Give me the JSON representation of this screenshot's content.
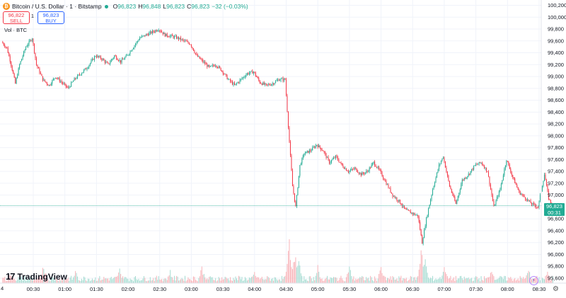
{
  "header": {
    "coin_symbol": "₿",
    "title": "Bitcoin / U.S. Dollar · 1 · Bitstamp",
    "ohlc": {
      "o_key": "O",
      "o_val": "96,823",
      "h_key": "H",
      "h_val": "96,848",
      "l_key": "L",
      "l_val": "96,823",
      "c_key": "C",
      "c_val": "96,823",
      "change": "−32 (−0.03%)"
    }
  },
  "trade": {
    "sell_price": "96,822",
    "sell_label": "SELL",
    "spread": "1",
    "buy_price": "96,823",
    "buy_label": "BUY"
  },
  "volume_label": "Vol · BTC",
  "logo_text": "TradingView",
  "left_stub": "4",
  "current_price": {
    "price": "96,823",
    "countdown": "00:31"
  },
  "colors": {
    "up": "#22ab94",
    "down": "#f23645",
    "up_vol": "#a6dcd2",
    "down_vol": "#f8b4b9",
    "grid": "#f0f3fa"
  },
  "chart_data": {
    "type": "candlestick",
    "y_ticks": [
      "100,200",
      "100,000",
      "99,800",
      "99,600",
      "99,400",
      "99,200",
      "99,000",
      "98,800",
      "98,600",
      "98,400",
      "98,200",
      "98,000",
      "97,800",
      "97,600",
      "97,400",
      "97,200",
      "97,000",
      "96,800",
      "96,600",
      "96,400",
      "96,200",
      "96,000",
      "95,800",
      "95,600"
    ],
    "y_range": [
      95600,
      100200
    ],
    "x_ticks": [
      "00:30",
      "01:00",
      "01:30",
      "02:00",
      "02:30",
      "03:00",
      "03:30",
      "04:00",
      "04:30",
      "05:00",
      "05:30",
      "06:00",
      "06:30",
      "07:00",
      "07:30",
      "08:00",
      "08:30"
    ],
    "time_start": "00:01",
    "time_end": "08:43",
    "last_price": 96823,
    "price_path": [
      [
        "00:01",
        99580
      ],
      [
        "00:06",
        99480
      ],
      [
        "00:10",
        99200
      ],
      [
        "00:14",
        98880
      ],
      [
        "00:18",
        99200
      ],
      [
        "00:24",
        99500
      ],
      [
        "00:30",
        99650
      ],
      [
        "00:34",
        99200
      ],
      [
        "00:40",
        98950
      ],
      [
        "00:46",
        98850
      ],
      [
        "00:52",
        99000
      ],
      [
        "00:58",
        98900
      ],
      [
        "01:04",
        98800
      ],
      [
        "01:10",
        98950
      ],
      [
        "01:16",
        99050
      ],
      [
        "01:22",
        99150
      ],
      [
        "01:30",
        99350
      ],
      [
        "01:36",
        99300
      ],
      [
        "01:42",
        99200
      ],
      [
        "01:48",
        99350
      ],
      [
        "01:54",
        99250
      ],
      [
        "02:00",
        99350
      ],
      [
        "02:06",
        99500
      ],
      [
        "02:12",
        99650
      ],
      [
        "02:18",
        99700
      ],
      [
        "02:24",
        99750
      ],
      [
        "02:30",
        99800
      ],
      [
        "02:36",
        99700
      ],
      [
        "02:42",
        99680
      ],
      [
        "02:48",
        99650
      ],
      [
        "02:54",
        99600
      ],
      [
        "03:00",
        99550
      ],
      [
        "03:06",
        99350
      ],
      [
        "03:12",
        99250
      ],
      [
        "03:18",
        99150
      ],
      [
        "03:24",
        99200
      ],
      [
        "03:30",
        99100
      ],
      [
        "03:36",
        98950
      ],
      [
        "03:42",
        98850
      ],
      [
        "03:48",
        98950
      ],
      [
        "03:54",
        99050
      ],
      [
        "04:00",
        99080
      ],
      [
        "04:06",
        98900
      ],
      [
        "04:12",
        98850
      ],
      [
        "04:18",
        98880
      ],
      [
        "04:24",
        98950
      ],
      [
        "04:30",
        98950
      ],
      [
        "04:34",
        97900
      ],
      [
        "04:37",
        97150
      ],
      [
        "04:40",
        96800
      ],
      [
        "04:44",
        97500
      ],
      [
        "04:48",
        97700
      ],
      [
        "04:54",
        97750
      ],
      [
        "05:00",
        97850
      ],
      [
        "05:06",
        97750
      ],
      [
        "05:12",
        97550
      ],
      [
        "05:18",
        97650
      ],
      [
        "05:24",
        97500
      ],
      [
        "05:30",
        97400
      ],
      [
        "05:36",
        97450
      ],
      [
        "05:42",
        97350
      ],
      [
        "05:48",
        97400
      ],
      [
        "05:54",
        97550
      ],
      [
        "06:00",
        97400
      ],
      [
        "06:06",
        97200
      ],
      [
        "06:12",
        97000
      ],
      [
        "06:18",
        96900
      ],
      [
        "06:24",
        96750
      ],
      [
        "06:30",
        96700
      ],
      [
        "06:36",
        96650
      ],
      [
        "06:40",
        96200
      ],
      [
        "06:44",
        96600
      ],
      [
        "06:50",
        97100
      ],
      [
        "06:56",
        97500
      ],
      [
        "07:00",
        97650
      ],
      [
        "07:06",
        97150
      ],
      [
        "07:12",
        96850
      ],
      [
        "07:18",
        97250
      ],
      [
        "07:24",
        97350
      ],
      [
        "07:30",
        97500
      ],
      [
        "07:36",
        97550
      ],
      [
        "07:42",
        97400
      ],
      [
        "07:48",
        96800
      ],
      [
        "07:54",
        97100
      ],
      [
        "08:00",
        97600
      ],
      [
        "08:06",
        97300
      ],
      [
        "08:12",
        97050
      ],
      [
        "08:18",
        96950
      ],
      [
        "08:24",
        96850
      ],
      [
        "08:30",
        96800
      ],
      [
        "08:36",
        97350
      ],
      [
        "08:40",
        96950
      ],
      [
        "08:43",
        96823
      ]
    ],
    "volume_spikes": [
      [
        "00:08",
        0.25
      ],
      [
        "00:40",
        0.45
      ],
      [
        "01:10",
        0.3
      ],
      [
        "01:52",
        0.35
      ],
      [
        "02:40",
        0.3
      ],
      [
        "03:10",
        0.4
      ],
      [
        "04:00",
        0.3
      ],
      [
        "04:33",
        1.0
      ],
      [
        "04:38",
        0.75
      ],
      [
        "04:42",
        0.55
      ],
      [
        "05:00",
        0.4
      ],
      [
        "05:30",
        0.45
      ],
      [
        "06:00",
        0.4
      ],
      [
        "06:38",
        0.85
      ],
      [
        "06:42",
        0.55
      ],
      [
        "07:00",
        0.5
      ],
      [
        "07:45",
        0.4
      ],
      [
        "08:20",
        0.35
      ],
      [
        "08:38",
        0.35
      ]
    ]
  }
}
